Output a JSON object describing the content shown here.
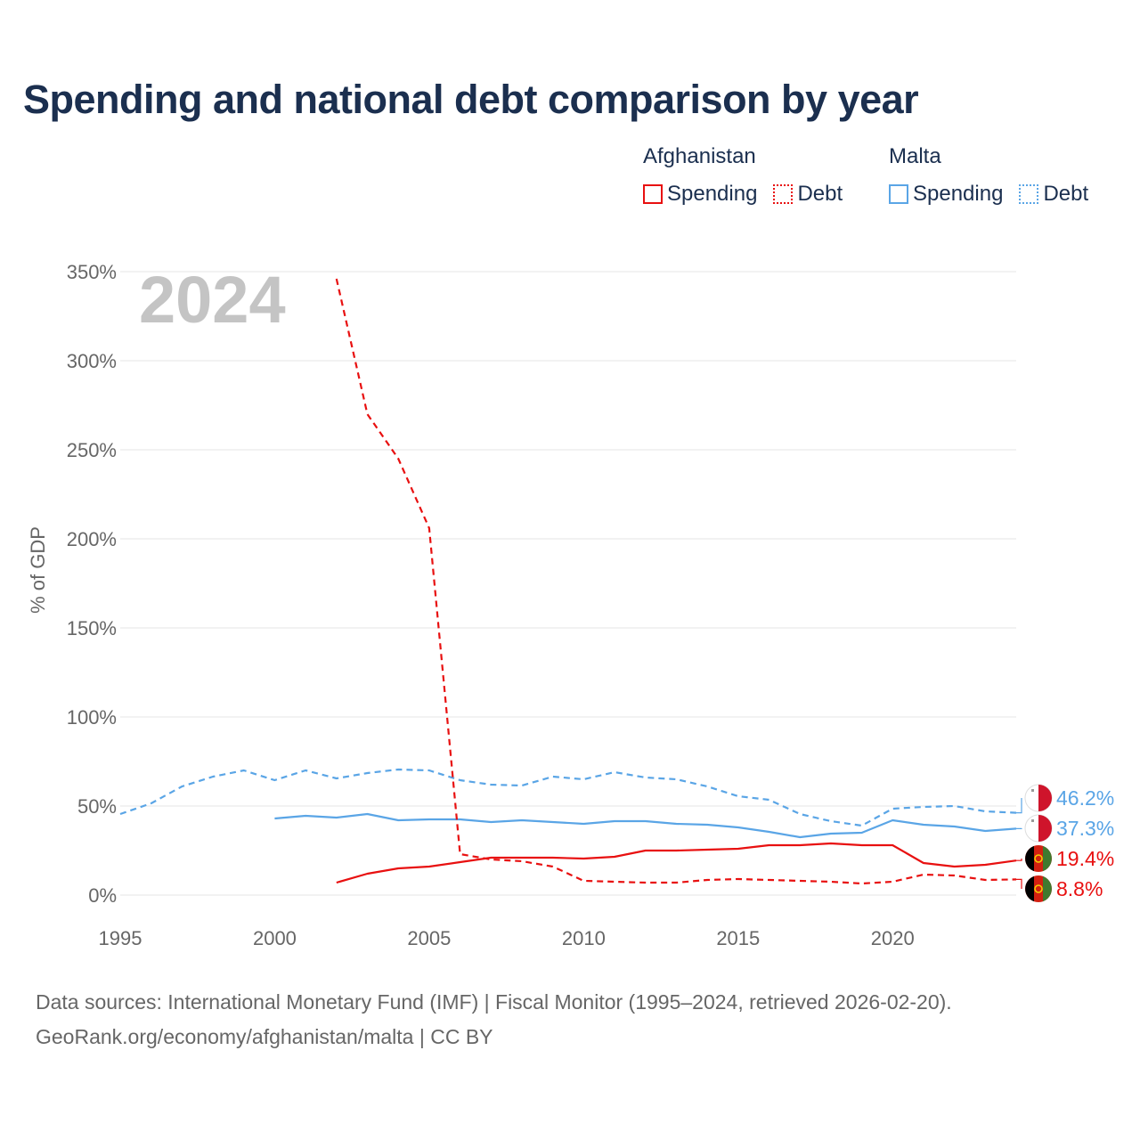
{
  "title": "Spending and national debt comparison by year",
  "legend": {
    "groups": [
      {
        "country": "Afghanistan",
        "items": [
          {
            "label": "Spending",
            "style": "solid",
            "color": "#e81010"
          },
          {
            "label": "Debt",
            "style": "dotted",
            "color": "#e81010"
          }
        ]
      },
      {
        "country": "Malta",
        "items": [
          {
            "label": "Spending",
            "style": "solid",
            "color": "#5aa5e6"
          },
          {
            "label": "Debt",
            "style": "dotted",
            "color": "#5aa5e6"
          }
        ]
      }
    ]
  },
  "chart_data": {
    "type": "line",
    "year_label": "2024",
    "ylabel": "% of GDP",
    "xlabel": "",
    "xlim": [
      1995,
      2024
    ],
    "ylim": [
      0,
      350
    ],
    "x_ticks": [
      1995,
      2000,
      2005,
      2010,
      2015,
      2020
    ],
    "y_ticks": [
      0,
      50,
      100,
      150,
      200,
      250,
      300,
      350
    ],
    "y_tick_labels": [
      "0%",
      "50%",
      "100%",
      "150%",
      "200%",
      "250%",
      "300%",
      "350%"
    ],
    "grid": true,
    "colors": {
      "afghanistan": "#e81010",
      "malta": "#5aa5e6"
    },
    "series": [
      {
        "name": "Malta Debt",
        "country": "Malta",
        "kind": "Debt",
        "color": "#5aa5e6",
        "dashed": true,
        "end_label": "46.2%",
        "x": [
          1995,
          1996,
          1997,
          1998,
          1999,
          2000,
          2001,
          2002,
          2003,
          2004,
          2005,
          2006,
          2007,
          2008,
          2009,
          2010,
          2011,
          2012,
          2013,
          2014,
          2015,
          2016,
          2017,
          2018,
          2019,
          2020,
          2021,
          2022,
          2023,
          2024
        ],
        "y": [
          45.5,
          51.5,
          61,
          66.5,
          70,
          64.5,
          70,
          65.5,
          68.5,
          70.5,
          70,
          64.5,
          62,
          61.5,
          66.5,
          65,
          69,
          66,
          65,
          61,
          55.5,
          53.5,
          45.5,
          41.5,
          39,
          48.5,
          49.5,
          50,
          47,
          46.2
        ]
      },
      {
        "name": "Malta Spending",
        "country": "Malta",
        "kind": "Spending",
        "color": "#5aa5e6",
        "dashed": false,
        "end_label": "37.3%",
        "x": [
          2000,
          2001,
          2002,
          2003,
          2004,
          2005,
          2006,
          2007,
          2008,
          2009,
          2010,
          2011,
          2012,
          2013,
          2014,
          2015,
          2016,
          2017,
          2018,
          2019,
          2020,
          2021,
          2022,
          2023,
          2024
        ],
        "y": [
          43,
          44.5,
          43.5,
          45.5,
          42,
          42.5,
          42.5,
          41,
          42,
          41,
          40,
          41.5,
          41.5,
          40,
          39.5,
          38,
          35.5,
          32.5,
          34.5,
          35,
          42,
          39.5,
          38.5,
          36,
          37.3
        ]
      },
      {
        "name": "Afghanistan Spending",
        "country": "Afghanistan",
        "kind": "Spending",
        "color": "#e81010",
        "dashed": false,
        "end_label": "19.4%",
        "x": [
          2002,
          2003,
          2004,
          2005,
          2006,
          2007,
          2008,
          2009,
          2010,
          2011,
          2012,
          2013,
          2014,
          2015,
          2016,
          2017,
          2018,
          2019,
          2020,
          2021,
          2022,
          2023,
          2024
        ],
        "y": [
          7,
          12,
          15,
          16,
          18.5,
          21,
          21,
          21,
          20.5,
          21.5,
          25,
          25,
          25.5,
          26,
          28,
          28,
          29,
          28,
          28,
          18,
          16,
          17,
          19.4
        ]
      },
      {
        "name": "Afghanistan Debt",
        "country": "Afghanistan",
        "kind": "Debt",
        "color": "#e81010",
        "dashed": true,
        "end_label": "8.8%",
        "x": [
          2002,
          2003,
          2004,
          2005,
          2006,
          2007,
          2008,
          2009,
          2010,
          2011,
          2012,
          2013,
          2014,
          2015,
          2016,
          2017,
          2018,
          2019,
          2020,
          2021,
          2022,
          2023,
          2024
        ],
        "y": [
          346,
          270,
          245,
          206,
          23,
          20,
          19,
          16,
          8,
          7.5,
          7,
          7,
          8.5,
          9,
          8.5,
          8,
          7.5,
          6.5,
          7.5,
          11.5,
          11,
          8.5,
          8.8
        ]
      }
    ]
  },
  "source": {
    "line1": "Data sources: International Monetary Fund (IMF) | Fiscal Monitor (1995–2024, retrieved 2026-02-20).",
    "line2": "GeoRank.org/economy/afghanistan/malta | CC BY"
  }
}
